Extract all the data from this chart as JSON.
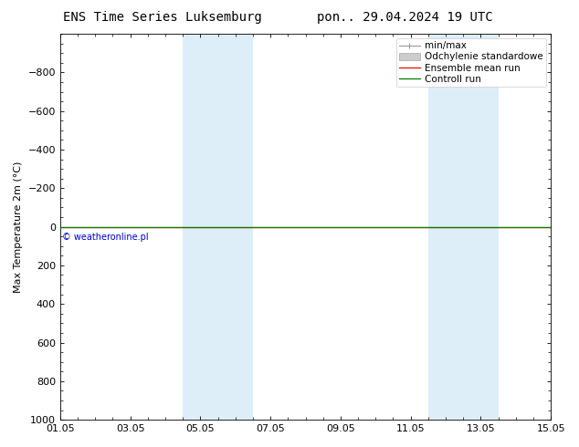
{
  "title_left": "ENS Time Series Luksemburg",
  "title_right": "pon.. 29.04.2024 19 UTC",
  "ylabel": "Max Temperature 2m (°C)",
  "ylim_top": -1000,
  "ylim_bottom": 1000,
  "yticks": [
    -800,
    -600,
    -400,
    -200,
    0,
    200,
    400,
    600,
    800,
    1000
  ],
  "xtick_labels": [
    "01.05",
    "03.05",
    "05.05",
    "07.05",
    "09.05",
    "11.05",
    "13.05",
    "15.05"
  ],
  "xtick_positions": [
    0,
    2,
    4,
    6,
    8,
    10,
    12,
    14
  ],
  "shaded_bands": [
    {
      "x_start": 3.5,
      "x_end": 5.5,
      "color": "#ddeef8"
    },
    {
      "x_start": 10.5,
      "x_end": 12.5,
      "color": "#ddeef8"
    }
  ],
  "green_line_y": 0,
  "red_line_y": 0,
  "copyright_text": "© weatheronline.pl",
  "copyright_color": "#0000cc",
  "legend_items": [
    {
      "label": "min/max"
    },
    {
      "label": "Odchylenie standardowe"
    },
    {
      "label": "Ensemble mean run"
    },
    {
      "label": "Controll run"
    }
  ],
  "background_color": "#ffffff",
  "title_fontsize": 10,
  "label_fontsize": 8,
  "legend_fontsize": 7.5
}
